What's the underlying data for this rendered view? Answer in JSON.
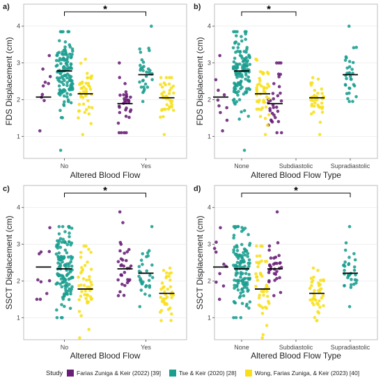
{
  "figure": {
    "legend_title": "Study"
  },
  "chart_data": [
    {
      "type": "scatter",
      "panel_label": "a)",
      "xlabel": "Altered Blood Flow",
      "ylabel": "FDS Displacement (cm)",
      "categories": [
        "No",
        "Yes"
      ],
      "ylim": [
        0.4,
        4.6
      ],
      "yticks": [
        1,
        2,
        3,
        4
      ],
      "significance": {
        "from": "No",
        "to": "Yes",
        "label": "*"
      },
      "series": [
        {
          "name": "Farias Zuniga & Keir (2022) [39]",
          "color": "#6a1f77",
          "groups": [
            {
              "category": "No",
              "count": 10,
              "median": 2.07,
              "min": 1.15,
              "max": 3.2
            },
            {
              "category": "Yes",
              "count": 32,
              "median": 1.89,
              "min": 1.1,
              "max": 3.0
            }
          ]
        },
        {
          "name": "Tse & Keir (2020) [28]",
          "color": "#1a9e8f",
          "groups": [
            {
              "category": "No",
              "count": 130,
              "median": 2.78,
              "min": 0.62,
              "max": 3.85
            },
            {
              "category": "Yes",
              "count": 32,
              "median": 2.68,
              "min": 1.95,
              "max": 4.0
            }
          ]
        },
        {
          "name": "Wong, Farias Zuniga, & Keir (2023) [40]",
          "color": "#f7e01b",
          "groups": [
            {
              "category": "No",
              "count": 45,
              "median": 2.16,
              "min": 1.05,
              "max": 3.1
            },
            {
              "category": "Yes",
              "count": 40,
              "median": 2.05,
              "min": 1.05,
              "max": 2.6
            }
          ]
        }
      ]
    },
    {
      "type": "scatter",
      "panel_label": "b)",
      "xlabel": "Altered Blood Flow Type",
      "ylabel": "FDS Displacement (cm)",
      "categories": [
        "None",
        "Subdiastolic",
        "Supradiastolic"
      ],
      "ylim": [
        0.4,
        4.6
      ],
      "yticks": [
        1,
        2,
        3,
        4
      ],
      "significance": {
        "from": "None",
        "to": "Subdiastolic",
        "label": "*"
      },
      "series": [
        {
          "name": "Farias Zuniga & Keir (2022) [39]",
          "color": "#6a1f77",
          "groups": [
            {
              "category": "None",
              "count": 10,
              "median": 2.07,
              "min": 1.15,
              "max": 3.2
            },
            {
              "category": "Subdiastolic",
              "count": 32,
              "median": 1.89,
              "min": 1.1,
              "max": 3.0
            }
          ]
        },
        {
          "name": "Tse & Keir (2020) [28]",
          "color": "#1a9e8f",
          "groups": [
            {
              "category": "None",
              "count": 130,
              "median": 2.78,
              "min": 0.62,
              "max": 3.85
            },
            {
              "category": "Supradiastolic",
              "count": 32,
              "median": 2.68,
              "min": 1.95,
              "max": 4.0
            }
          ]
        },
        {
          "name": "Wong, Farias Zuniga, & Keir (2023) [40]",
          "color": "#f7e01b",
          "groups": [
            {
              "category": "None",
              "count": 45,
              "median": 2.16,
              "min": 1.05,
              "max": 3.1
            },
            {
              "category": "Subdiastolic",
              "count": 40,
              "median": 2.05,
              "min": 1.05,
              "max": 2.6
            }
          ]
        }
      ]
    },
    {
      "type": "scatter",
      "panel_label": "c)",
      "xlabel": "Altered Blood Flow",
      "ylabel": "SSCT Displacement (cm)",
      "categories": [
        "No",
        "Yes"
      ],
      "ylim": [
        0.4,
        4.6
      ],
      "yticks": [
        1,
        2,
        3,
        4
      ],
      "significance": {
        "from": "No",
        "to": "Yes",
        "label": "*"
      },
      "series": [
        {
          "name": "Farias Zuniga & Keir (2022) [39]",
          "color": "#6a1f77",
          "groups": [
            {
              "category": "No",
              "count": 10,
              "median": 2.38,
              "min": 1.5,
              "max": 3.45
            },
            {
              "category": "Yes",
              "count": 32,
              "median": 2.33,
              "min": 1.6,
              "max": 3.88
            }
          ]
        },
        {
          "name": "Tse & Keir (2020) [28]",
          "color": "#1a9e8f",
          "groups": [
            {
              "category": "No",
              "count": 130,
              "median": 2.33,
              "min": 1.0,
              "max": 3.48
            },
            {
              "category": "Yes",
              "count": 32,
              "median": 2.21,
              "min": 1.3,
              "max": 3.48
            }
          ]
        },
        {
          "name": "Wong, Farias Zuniga, & Keir (2023) [40]",
          "color": "#f7e01b",
          "groups": [
            {
              "category": "No",
              "count": 45,
              "median": 1.78,
              "min": 0.45,
              "max": 2.95
            },
            {
              "category": "Yes",
              "count": 40,
              "median": 1.66,
              "min": 0.92,
              "max": 2.35
            }
          ]
        }
      ]
    },
    {
      "type": "scatter",
      "panel_label": "d)",
      "xlabel": "Altered Blood Flow Type",
      "ylabel": "SSCT Displacement (cm)",
      "categories": [
        "None",
        "Subdiastolic",
        "Supradiastolic"
      ],
      "ylim": [
        0.4,
        4.6
      ],
      "yticks": [
        1,
        2,
        3,
        4
      ],
      "significance": {
        "from": "None",
        "to": "Supradiastolic",
        "label": "*"
      },
      "series": [
        {
          "name": "Farias Zuniga & Keir (2022) [39]",
          "color": "#6a1f77",
          "groups": [
            {
              "category": "None",
              "count": 10,
              "median": 2.38,
              "min": 1.5,
              "max": 3.45
            },
            {
              "category": "Subdiastolic",
              "count": 32,
              "median": 2.33,
              "min": 1.6,
              "max": 3.88
            }
          ]
        },
        {
          "name": "Tse & Keir (2020) [28]",
          "color": "#1a9e8f",
          "groups": [
            {
              "category": "None",
              "count": 130,
              "median": 2.33,
              "min": 1.0,
              "max": 3.48
            },
            {
              "category": "Supradiastolic",
              "count": 32,
              "median": 2.21,
              "min": 1.3,
              "max": 3.48
            }
          ]
        },
        {
          "name": "Wong, Farias Zuniga, & Keir (2023) [40]",
          "color": "#f7e01b",
          "groups": [
            {
              "category": "None",
              "count": 45,
              "median": 1.78,
              "min": 0.45,
              "max": 2.95
            },
            {
              "category": "Subdiastolic",
              "count": 40,
              "median": 1.66,
              "min": 0.92,
              "max": 2.35
            }
          ]
        }
      ]
    }
  ]
}
